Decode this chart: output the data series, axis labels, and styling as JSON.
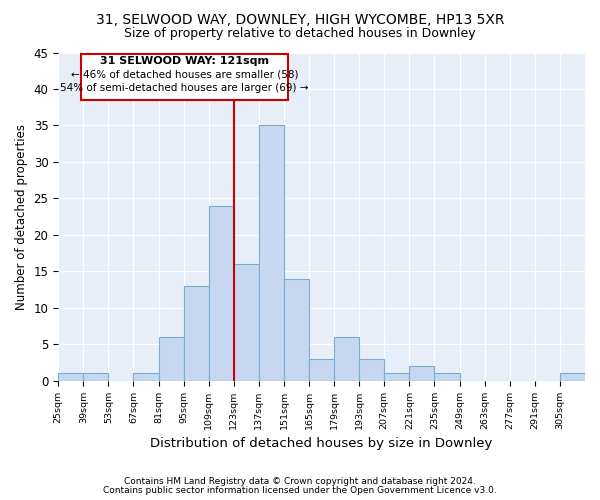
{
  "title1": "31, SELWOOD WAY, DOWNLEY, HIGH WYCOMBE, HP13 5XR",
  "title2": "Size of property relative to detached houses in Downley",
  "xlabel": "Distribution of detached houses by size in Downley",
  "ylabel": "Number of detached properties",
  "footnote1": "Contains HM Land Registry data © Crown copyright and database right 2024.",
  "footnote2": "Contains public sector information licensed under the Open Government Licence v3.0.",
  "annotation_line1": "31 SELWOOD WAY: 121sqm",
  "annotation_line2": "← 46% of detached houses are smaller (58)",
  "annotation_line3": "54% of semi-detached houses are larger (69) →",
  "bar_edges": [
    25,
    39,
    53,
    67,
    81,
    95,
    109,
    123,
    137,
    151,
    165,
    179,
    193,
    207,
    221,
    235,
    249,
    263,
    277,
    291,
    305
  ],
  "bar_heights": [
    1,
    1,
    0,
    1,
    6,
    13,
    24,
    16,
    35,
    14,
    3,
    6,
    3,
    1,
    2,
    1,
    0,
    0,
    0,
    0,
    1
  ],
  "bar_color": "#c5d8f0",
  "bar_edge_color": "#7aadd4",
  "vline_color": "#cc0000",
  "vline_x": 123,
  "box_edge_color": "#cc0000",
  "background_color": "#e8eef8",
  "grid_color": "#ffffff",
  "ylim": [
    0,
    45
  ],
  "yticks": [
    0,
    5,
    10,
    15,
    20,
    25,
    30,
    35,
    40,
    45
  ],
  "title1_fontsize": 10,
  "title2_fontsize": 9
}
